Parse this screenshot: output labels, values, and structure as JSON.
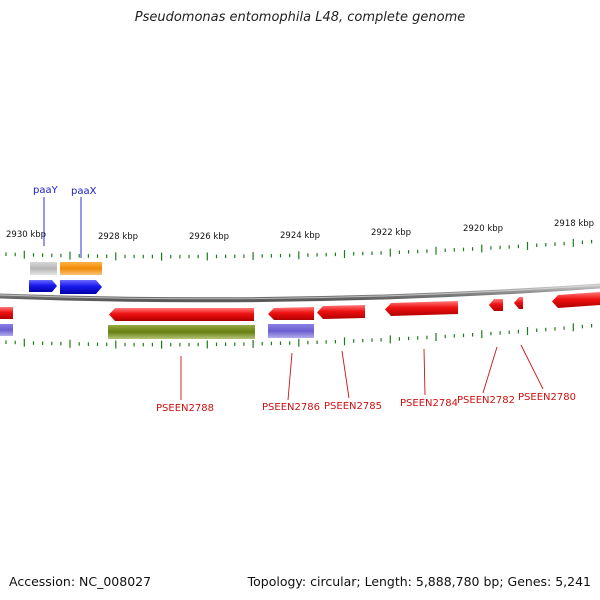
{
  "title": "Pseudomonas entomophila L48, complete genome",
  "footer": {
    "accession": "Accession: NC_008027",
    "summary": "Topology: circular; Length: 5,888,780 bp; Genes: 5,241"
  },
  "colors": {
    "cds_red": "#ee1111",
    "gene_olive": "#667f11",
    "gene_purple": "#6b5fd0",
    "cds_blue": "#1a1aee",
    "gray_feature": "#b5b5b5",
    "orange_feature": "#f28a05",
    "tick_green": "#1e7a1e",
    "label_blue": "#1a1acc",
    "label_red": "#cc1111",
    "backbone": "#8a8a8a"
  },
  "scale_labels": [
    "2930 kbp",
    "2928 kbp",
    "2926 kbp",
    "2924 kbp",
    "2922 kbp",
    "2920 kbp",
    "2918 kbp"
  ],
  "gene_labels_top": [
    "paaY",
    "paaX"
  ],
  "gene_labels_bottom": [
    "PSEEN2788",
    "PSEEN2786",
    "PSEEN2785",
    "PSEEN2784",
    "PSEEN2782",
    "PSEEN2780"
  ]
}
